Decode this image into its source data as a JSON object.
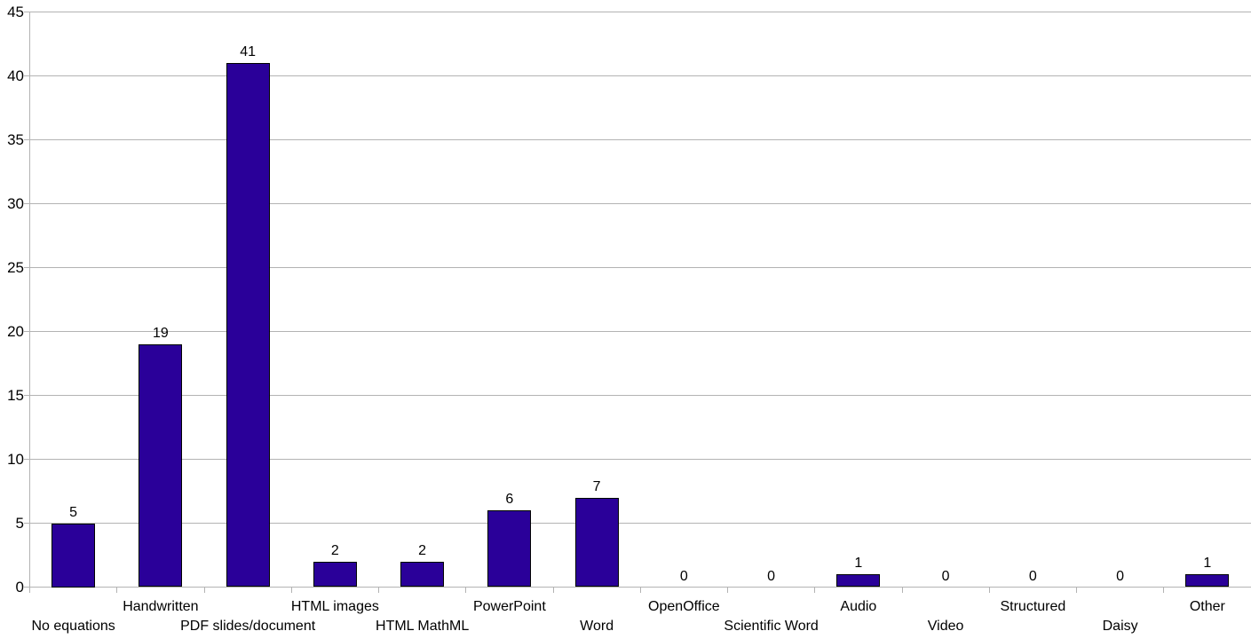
{
  "chart_data": {
    "type": "bar",
    "title": "",
    "xlabel": "",
    "ylabel": "",
    "categories": [
      "No equations",
      "Handwritten",
      "PDF slides/document",
      "HTML images",
      "HTML MathML",
      "PowerPoint",
      "Word",
      "OpenOffice",
      "Scientific Word",
      "Audio",
      "Video",
      "Structured",
      "Daisy",
      "Other"
    ],
    "values": [
      5,
      19,
      41,
      2,
      2,
      6,
      7,
      0,
      0,
      1,
      0,
      0,
      0,
      1
    ],
    "ylim": [
      0,
      45
    ],
    "yticks": [
      0,
      5,
      10,
      15,
      20,
      25,
      30,
      35,
      40,
      45
    ],
    "grid": true,
    "legend": false,
    "data_labels": true,
    "x_labels_staggered": true,
    "colors": {
      "bar_fill": "#2a0099",
      "bar_border": "#000000",
      "gridline": "#b3b3b3",
      "axis": "#b3b3b3",
      "text": "#000000",
      "background": "#ffffff"
    }
  }
}
